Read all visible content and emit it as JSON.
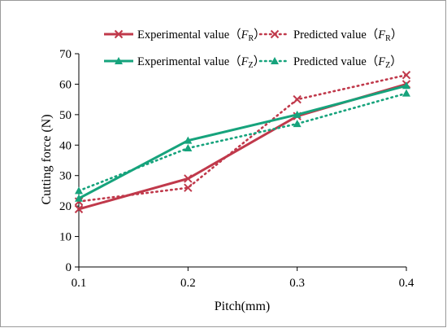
{
  "chart_data": {
    "type": "line",
    "xlabel": "Pitch(mm)",
    "ylabel": "Cutting force (N)",
    "x": [
      0.1,
      0.2,
      0.3,
      0.4
    ],
    "xticks": [
      "0.1",
      "0.2",
      "0.3",
      "0.4"
    ],
    "ylim": [
      0,
      70
    ],
    "yticks": [
      "0",
      "10",
      "20",
      "30",
      "40",
      "50",
      "60",
      "70"
    ],
    "grid": false,
    "legend_position": "top",
    "series": [
      {
        "name": "Experimental value（FR）",
        "label": "Experimental value（",
        "sym": "F",
        "sub": "R",
        "close": "）",
        "values": [
          19,
          29,
          49.5,
          60
        ],
        "color": "#c0394b",
        "style": "solid",
        "marker": "x"
      },
      {
        "name": "Predicted value（FR）",
        "label": "Predicted value（",
        "sym": "F",
        "sub": "R",
        "close": "）",
        "values": [
          21.5,
          26,
          55,
          63
        ],
        "color": "#c0394b",
        "style": "dotted",
        "marker": "x"
      },
      {
        "name": "Experimental value（FZ）",
        "label": "Experimental value（",
        "sym": "F",
        "sub": "Z",
        "close": "）",
        "values": [
          22.5,
          41.5,
          50,
          59.5
        ],
        "color": "#16a37c",
        "style": "solid",
        "marker": "triangle"
      },
      {
        "name": "Predicted value（FZ）",
        "label": "Predicted value（",
        "sym": "F",
        "sub": "Z",
        "close": "）",
        "values": [
          25,
          39,
          47,
          57
        ],
        "color": "#16a37c",
        "style": "dotted",
        "marker": "triangle"
      }
    ]
  }
}
